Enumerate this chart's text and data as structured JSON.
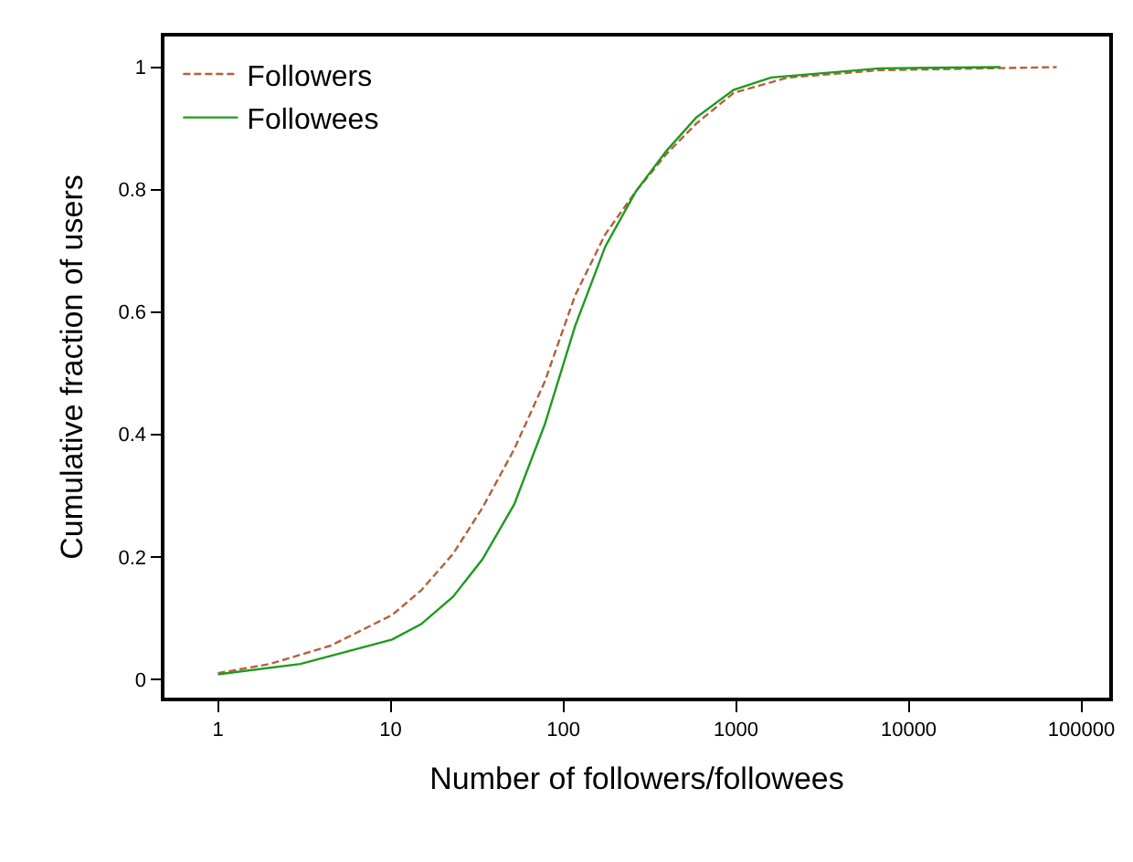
{
  "chart_data": {
    "type": "line",
    "xlabel": "Number of followers/followees",
    "ylabel": "Cumulative fraction of users",
    "log": "x",
    "xlim": [
      0.49,
      145000
    ],
    "xticks": [
      1,
      10,
      100,
      1000,
      10000,
      100000
    ],
    "ylim": [
      -0.03,
      1.05
    ],
    "yticks": [
      0,
      0.2,
      0.4,
      0.6,
      0.8,
      1
    ],
    "legend": "top left",
    "series": [
      {
        "name": "Followers",
        "color": "#b5603c",
        "line_style": "dashed",
        "x": [
          1,
          2,
          4.5,
          10.2,
          15,
          23,
          34,
          52,
          78,
          117,
          175,
          263,
          395,
          590,
          970,
          2000,
          6800,
          72000
        ],
        "values": [
          0.01,
          0.025,
          0.055,
          0.105,
          0.145,
          0.205,
          0.28,
          0.376,
          0.486,
          0.627,
          0.727,
          0.797,
          0.858,
          0.908,
          0.958,
          0.983,
          0.995,
          1.0
        ]
      },
      {
        "name": "Followees",
        "color": "#1f9a1f",
        "line_style": "solid",
        "x": [
          1,
          3,
          10.2,
          15,
          23,
          34,
          52,
          78,
          117,
          175,
          263,
          395,
          590,
          970,
          1600,
          6800,
          34000
        ],
        "values": [
          0.008,
          0.025,
          0.065,
          0.09,
          0.135,
          0.196,
          0.286,
          0.416,
          0.577,
          0.707,
          0.797,
          0.863,
          0.918,
          0.963,
          0.983,
          0.998,
          1.0
        ]
      }
    ]
  }
}
